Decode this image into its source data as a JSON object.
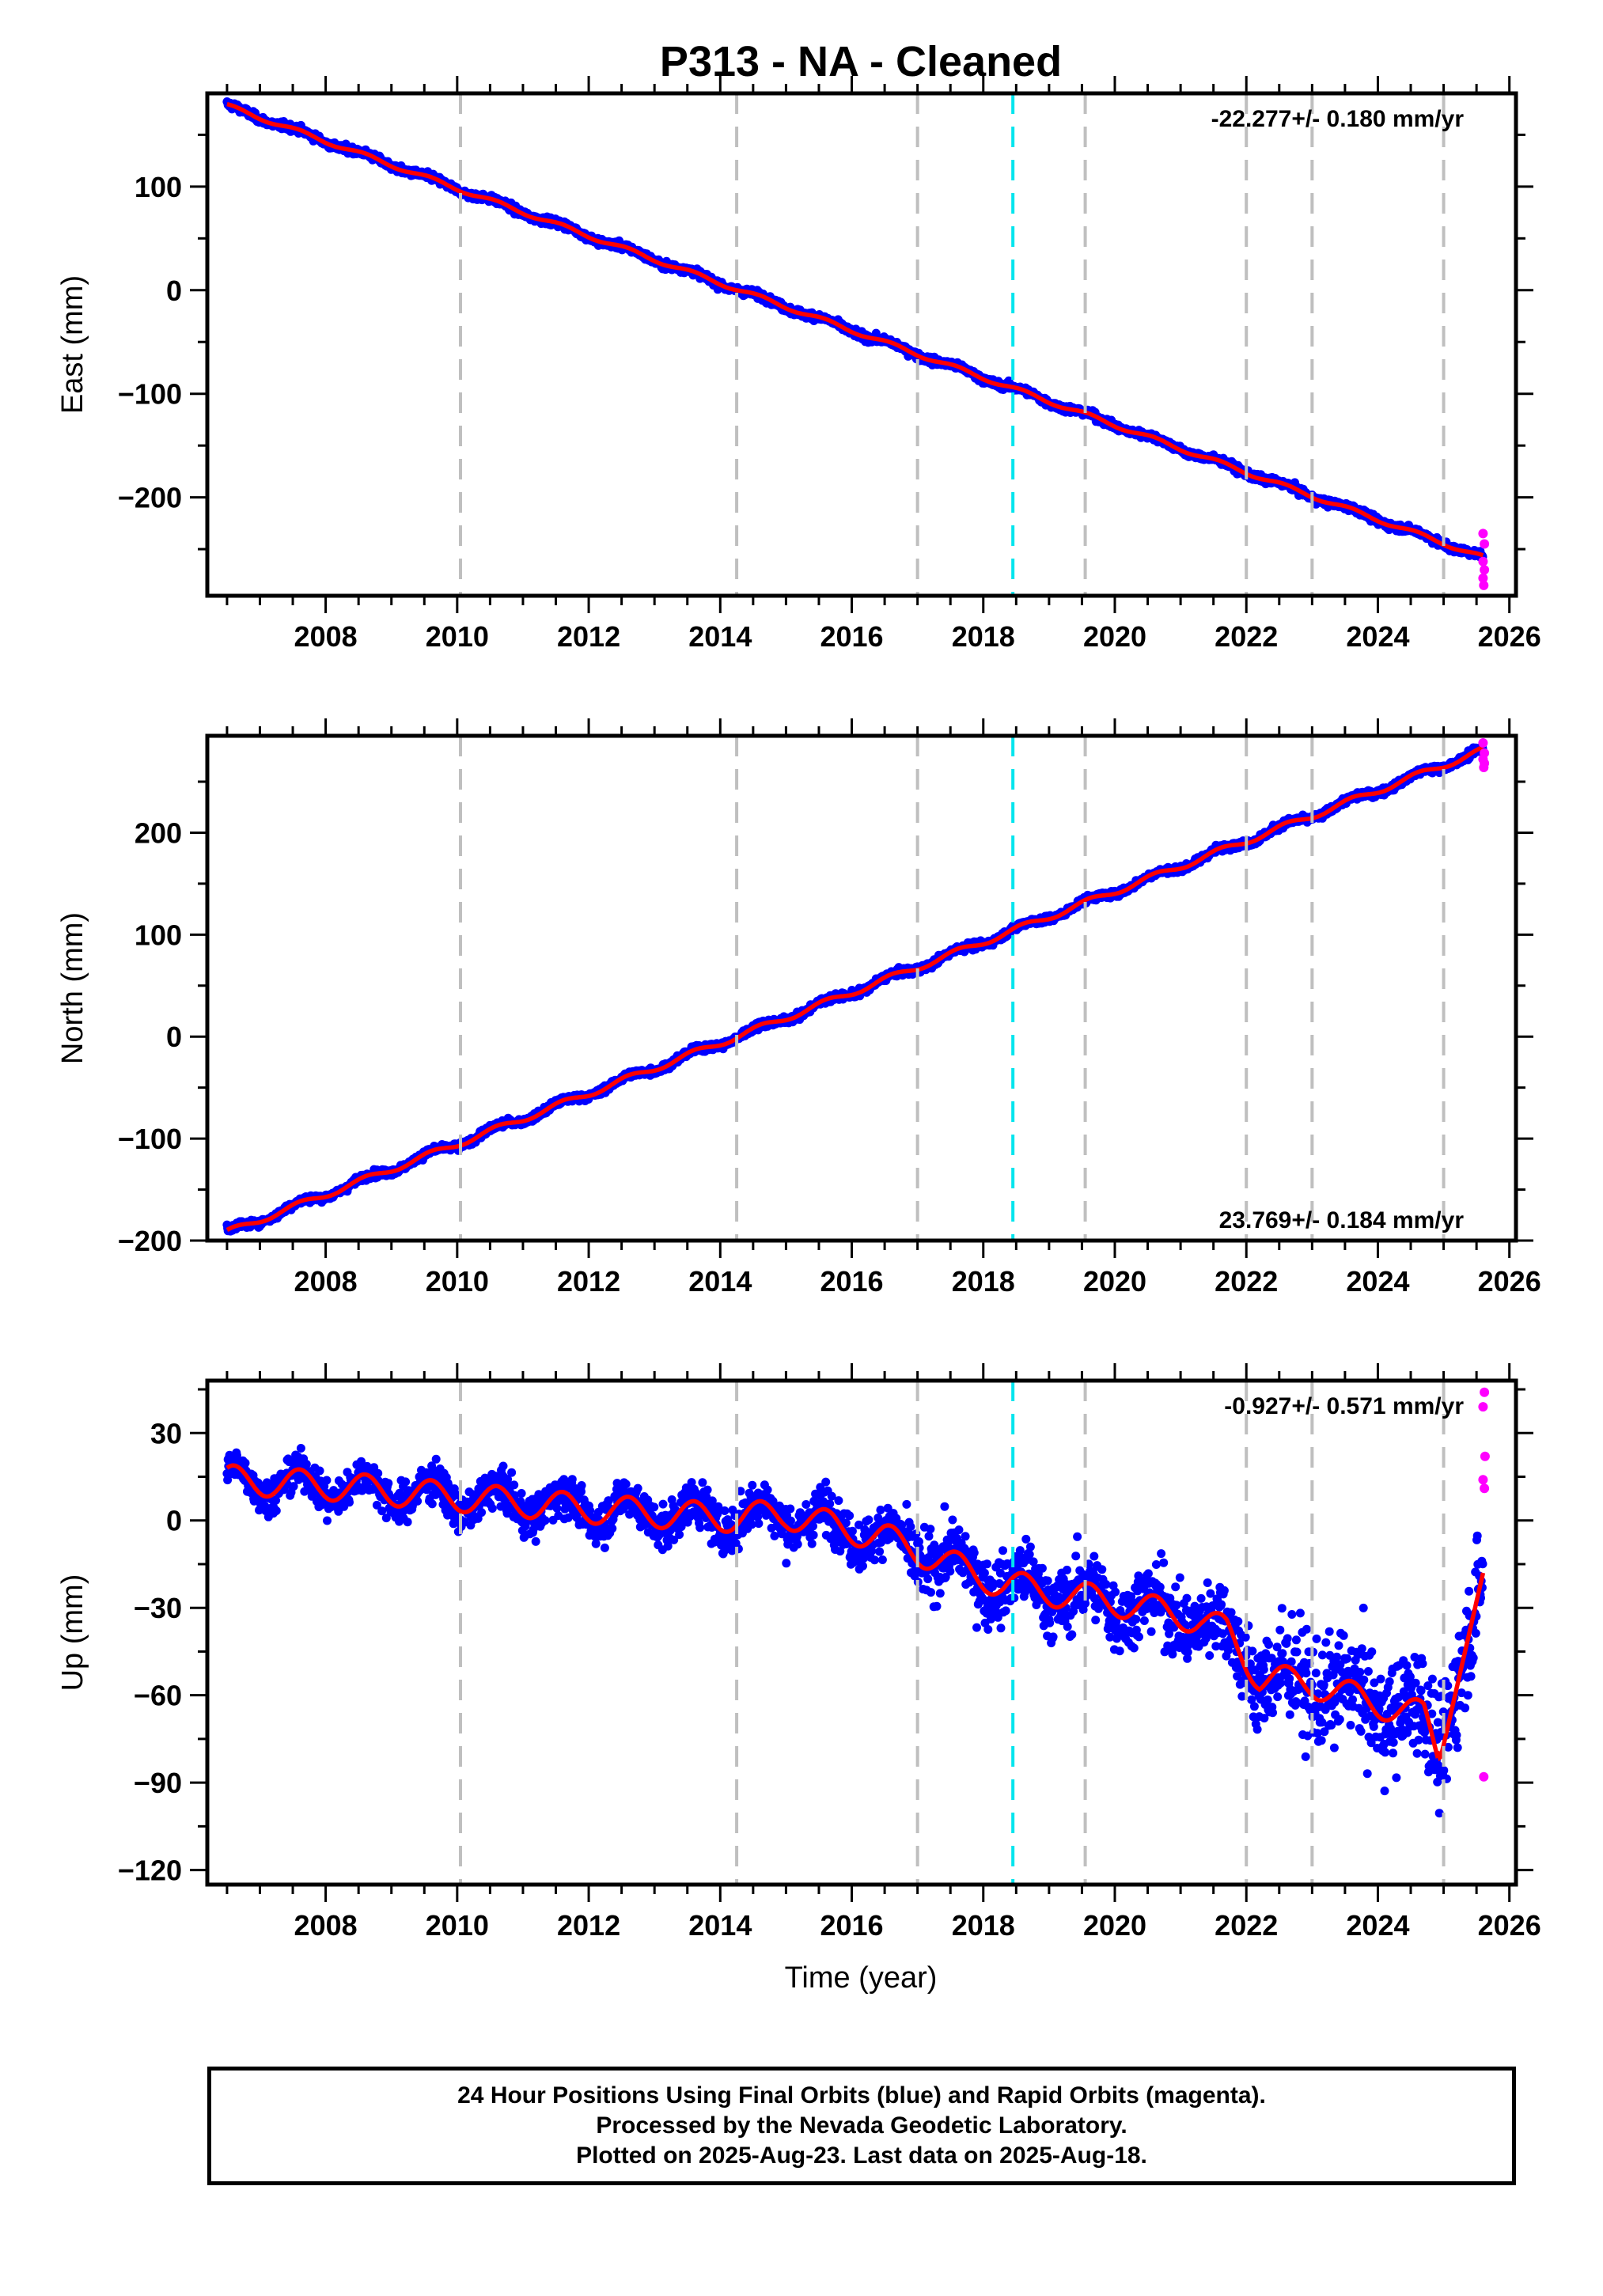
{
  "title": "P313  - NA - Cleaned",
  "colors": {
    "final_orbits": "#0000ff",
    "rapid_orbits": "#ff00ff",
    "model_fit": "#ff0000",
    "event_line": "#bfbfbf",
    "highlight_line": "#00e5ee"
  },
  "chart_data": [
    {
      "type": "scatter",
      "component": "east",
      "ylabel": "East (mm)",
      "xlim": [
        2006.2,
        2026.1
      ],
      "ylim": [
        -295,
        190
      ],
      "xticks": [
        "2008",
        "2010",
        "2012",
        "2014",
        "2016",
        "2018",
        "2020",
        "2022",
        "2024",
        "2026"
      ],
      "yticks": [
        "100",
        "0",
        "−100",
        "−200"
      ],
      "ytick_values": [
        100,
        0,
        -100,
        -200
      ],
      "rate_label": "-22.277+/- 0.180 mm/yr",
      "rate_position": "top-right",
      "series": [
        {
          "role": "final",
          "trend": {
            "start": [
              2006.5,
              178
            ],
            "end": [
              2025.6,
              -258
            ]
          },
          "seasonal_amplitude": 2,
          "scatter": 3
        },
        {
          "role": "rapid",
          "points": [
            [
              2025.6,
              -235
            ],
            [
              2025.62,
              -245
            ],
            [
              2025.6,
              -262
            ],
            [
              2025.62,
              -270
            ],
            [
              2025.6,
              -278
            ],
            [
              2025.61,
              -285
            ]
          ]
        }
      ]
    },
    {
      "type": "scatter",
      "component": "north",
      "ylabel": "North (mm)",
      "xlim": [
        2006.2,
        2026.1
      ],
      "ylim": [
        -200,
        295
      ],
      "xticks": [
        "2008",
        "2010",
        "2012",
        "2014",
        "2016",
        "2018",
        "2020",
        "2022",
        "2024",
        "2026"
      ],
      "yticks": [
        "200",
        "100",
        "0",
        "−100",
        "−200"
      ],
      "ytick_values": [
        200,
        100,
        0,
        -100,
        -200
      ],
      "rate_label": "23.769+/- 0.184 mm/yr",
      "rate_position": "bottom-right",
      "series": [
        {
          "role": "final",
          "trend": {
            "start": [
              2006.5,
              -192
            ],
            "end": [
              2025.6,
              281
            ]
          },
          "seasonal_amplitude": 3,
          "scatter": 3
        },
        {
          "role": "rapid",
          "points": [
            [
              2025.6,
              288
            ],
            [
              2025.62,
              278
            ],
            [
              2025.6,
              272
            ],
            [
              2025.62,
              268
            ],
            [
              2025.61,
              264
            ]
          ]
        }
      ]
    },
    {
      "type": "scatter",
      "component": "up",
      "ylabel": "Up (mm)",
      "xlabel": "Time (year)",
      "xlim": [
        2006.2,
        2026.1
      ],
      "ylim": [
        -125,
        48
      ],
      "xticks": [
        "2008",
        "2010",
        "2012",
        "2014",
        "2016",
        "2018",
        "2020",
        "2022",
        "2024",
        "2026"
      ],
      "yticks": [
        "30",
        "0",
        "−30",
        "−60",
        "−90",
        "−120"
      ],
      "ytick_values": [
        30,
        0,
        -30,
        -60,
        -90,
        -120
      ],
      "rate_label": "-0.927+/- 0.571 mm/yr",
      "rate_position": "top-right",
      "series": [
        {
          "role": "fit",
          "nodes": [
            [
              2006.5,
              14
            ],
            [
              2008.0,
              12
            ],
            [
              2010.0,
              8
            ],
            [
              2012.0,
              4
            ],
            [
              2014.0,
              1
            ],
            [
              2015.0,
              2
            ],
            [
              2016.5,
              -6
            ],
            [
              2017.5,
              -15
            ],
            [
              2018.3,
              -22
            ],
            [
              2020.0,
              -28
            ],
            [
              2021.3,
              -34
            ],
            [
              2021.7,
              -38
            ],
            [
              2022.2,
              -54
            ],
            [
              2023.0,
              -56
            ],
            [
              2024.0,
              -63
            ],
            [
              2024.7,
              -67
            ],
            [
              2024.95,
              -82
            ],
            [
              2025.6,
              -18
            ]
          ],
          "seasonal_amplitude": 5
        },
        {
          "role": "final",
          "scatter_by_epoch": [
            [
              2006.5,
              5
            ],
            [
              2016.5,
              7
            ],
            [
              2017.0,
              9
            ],
            [
              2021.7,
              11
            ],
            [
              2022.3,
              15
            ],
            [
              2025.6,
              16
            ]
          ]
        },
        {
          "role": "rapid",
          "points": [
            [
              2025.62,
              44
            ],
            [
              2025.6,
              39
            ],
            [
              2025.63,
              22
            ],
            [
              2025.6,
              14
            ],
            [
              2025.62,
              11
            ],
            [
              2025.61,
              -88
            ]
          ]
        }
      ]
    }
  ],
  "event_lines": [
    2010.05,
    2014.25,
    2017.0,
    2019.55,
    2022.0,
    2023.0,
    2025.0
  ],
  "highlight_line": 2018.45,
  "footer": {
    "line1": "24 Hour Positions Using Final Orbits (blue) and Rapid Orbits (magenta).",
    "line2": "Processed by the Nevada Geodetic Laboratory.",
    "line3": "Plotted on 2025-Aug-23. Last data on 2025-Aug-18."
  }
}
